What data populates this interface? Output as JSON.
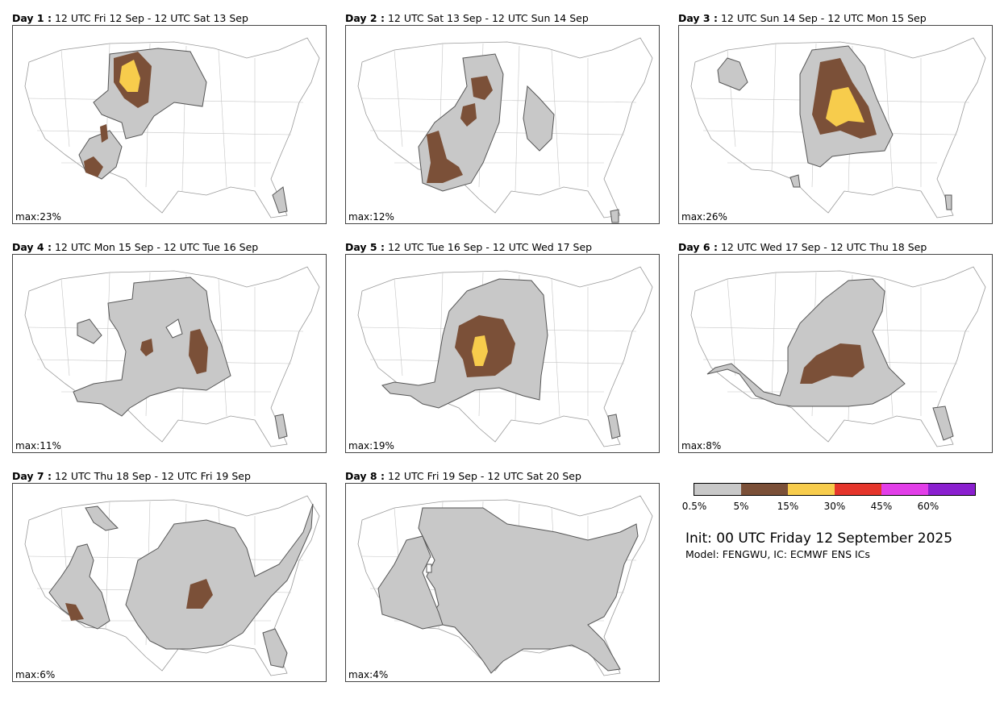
{
  "panels": [
    {
      "day": "Day 1 :",
      "range": "12 UTC Fri 12 Sep - 12 UTC Sat 13 Sep",
      "max": "max:23%"
    },
    {
      "day": "Day 2 :",
      "range": "12 UTC Sat 13 Sep - 12 UTC Sun 14 Sep",
      "max": "max:12%"
    },
    {
      "day": "Day 3 :",
      "range": "12 UTC Sun 14 Sep - 12 UTC Mon 15 Sep",
      "max": "max:26%"
    },
    {
      "day": "Day 4 :",
      "range": "12 UTC Mon 15 Sep - 12 UTC Tue 16 Sep",
      "max": "max:11%"
    },
    {
      "day": "Day 5 :",
      "range": "12 UTC Tue 16 Sep - 12 UTC Wed 17 Sep",
      "max": "max:19%"
    },
    {
      "day": "Day 6 :",
      "range": "12 UTC Wed 17 Sep - 12 UTC Thu 18 Sep",
      "max": "max:8%"
    },
    {
      "day": "Day 7 :",
      "range": "12 UTC Thu 18 Sep - 12 UTC Fri 19 Sep",
      "max": "max:6%"
    },
    {
      "day": "Day 8 :",
      "range": "12 UTC Fri 19 Sep - 12 UTC Sat 20 Sep",
      "max": "max:4%"
    }
  ],
  "legend": {
    "ticks": [
      "0.5%",
      "5%",
      "15%",
      "30%",
      "45%",
      "60%"
    ],
    "colors": [
      "#c8c8c8",
      "#7b5038",
      "#f7cc4c",
      "#e5352b",
      "#e23ee8",
      "#8a1fcf"
    ]
  },
  "info": {
    "init": "Init: 00 UTC Friday 12 September 2025",
    "model": "Model: FENGWU, IC: ECMWF ENS ICs"
  }
}
